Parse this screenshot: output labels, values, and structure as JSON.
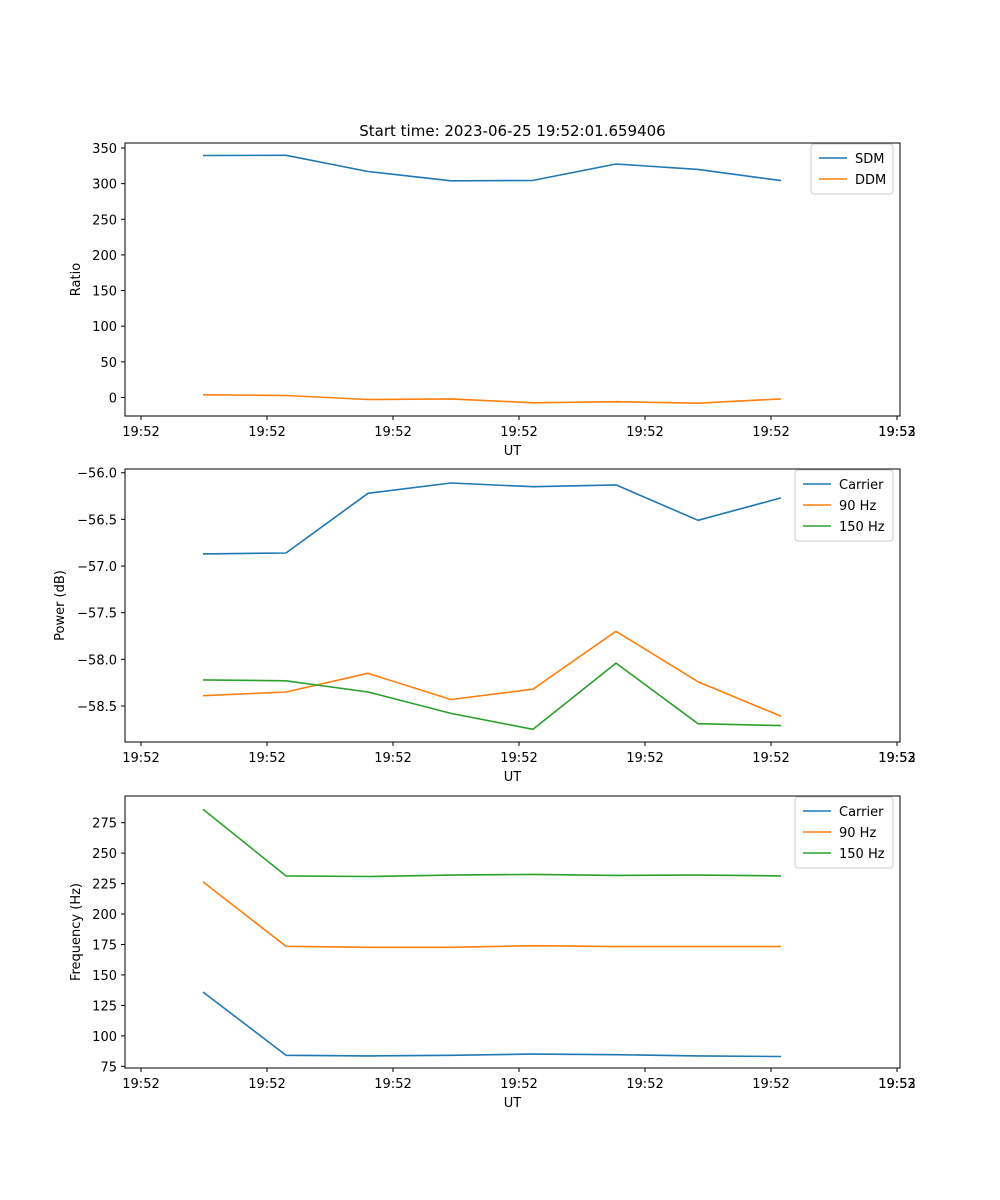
{
  "title": "Start time: 2023-06-25 19:52:01.659406",
  "colors": {
    "blue": "#1f77b4",
    "orange": "#ff7f0e",
    "green": "#2ca02c"
  },
  "chart_data": [
    {
      "type": "line",
      "title": "Start time: 2023-06-25 19:52:01.659406",
      "xlabel": "UT",
      "ylabel": "Ratio",
      "x_tick_labels": [
        "19:52",
        "19:52",
        "19:52",
        "19:52",
        "19:52",
        "19:52",
        "19:52"
      ],
      "x_tick_end_label": "19:53",
      "y_ticks": [
        0,
        50,
        100,
        150,
        200,
        250,
        300,
        350
      ],
      "ylim": [
        -26,
        357
      ],
      "grid": false,
      "legend": "top-right",
      "series": [
        {
          "name": "SDM",
          "color": "#1f77b4",
          "values": [
            339.5,
            339.7,
            317.0,
            304.0,
            304.5,
            327.5,
            320.0,
            304.2
          ]
        },
        {
          "name": "DDM",
          "color": "#ff7f0e",
          "values": [
            3.8,
            2.8,
            -2.8,
            -2.0,
            -7.5,
            -6.0,
            -8.0,
            -2.0
          ]
        }
      ]
    },
    {
      "type": "line",
      "title": "",
      "xlabel": "UT",
      "ylabel": "Power (dB)",
      "x_tick_labels": [
        "19:52",
        "19:52",
        "19:52",
        "19:52",
        "19:52",
        "19:52",
        "19:52"
      ],
      "x_tick_end_label": "19:53",
      "y_ticks": [
        -56.0,
        -56.5,
        -57.0,
        -57.5,
        -58.0,
        -58.5
      ],
      "y_tick_labels": [
        "−56.0",
        "−56.5",
        "−57.0",
        "−57.5",
        "−58.0",
        "−58.5"
      ],
      "ylim": [
        -58.886,
        -55.96
      ],
      "grid": false,
      "legend": "top-right",
      "series": [
        {
          "name": "Carrier",
          "color": "#1f77b4",
          "values": [
            -56.87,
            -56.86,
            -56.22,
            -56.11,
            -56.15,
            -56.13,
            -56.51,
            -56.27
          ]
        },
        {
          "name": "90 Hz",
          "color": "#ff7f0e",
          "values": [
            -58.39,
            -58.35,
            -58.15,
            -58.43,
            -58.32,
            -57.7,
            -58.24,
            -58.61
          ]
        },
        {
          "name": "150 Hz",
          "color": "#2ca02c",
          "values": [
            -58.22,
            -58.23,
            -58.35,
            -58.58,
            -58.75,
            -58.04,
            -58.69,
            -58.71
          ]
        }
      ]
    },
    {
      "type": "line",
      "title": "",
      "xlabel": "UT",
      "ylabel": "Frequency (Hz)",
      "x_tick_labels": [
        "19:52",
        "19:52",
        "19:52",
        "19:52",
        "19:52",
        "19:52",
        "19:52"
      ],
      "x_tick_end_label": "19:53",
      "y_ticks": [
        75,
        100,
        125,
        150,
        175,
        200,
        225,
        250,
        275
      ],
      "ylim": [
        73.6,
        296.9
      ],
      "grid": false,
      "legend": "top-right",
      "series": [
        {
          "name": "Carrier",
          "color": "#1f77b4",
          "values": [
            136.0,
            84.0,
            83.5,
            84.0,
            85.0,
            84.5,
            83.5,
            83.0
          ]
        },
        {
          "name": "90 Hz",
          "color": "#ff7f0e",
          "values": [
            226.5,
            173.5,
            172.7,
            172.7,
            174.0,
            173.3,
            173.3,
            173.3
          ]
        },
        {
          "name": "150 Hz",
          "color": "#2ca02c",
          "values": [
            286.0,
            231.3,
            230.8,
            232.0,
            232.5,
            231.7,
            232.0,
            231.3
          ]
        }
      ]
    }
  ]
}
